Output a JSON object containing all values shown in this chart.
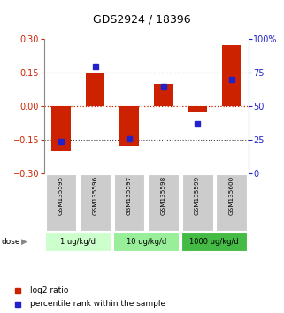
{
  "title": "GDS2924 / 18396",
  "samples": [
    "GSM135595",
    "GSM135596",
    "GSM135597",
    "GSM135598",
    "GSM135599",
    "GSM135600"
  ],
  "log2_ratio": [
    -0.2,
    0.148,
    -0.175,
    0.1,
    -0.028,
    0.275
  ],
  "percentile_rank": [
    24,
    80,
    26,
    65,
    37,
    70
  ],
  "bar_color": "#cc2200",
  "blue_color": "#2222cc",
  "ylim": [
    -0.3,
    0.3
  ],
  "y2lim": [
    0,
    100
  ],
  "yticks": [
    -0.3,
    -0.15,
    0,
    0.15,
    0.3
  ],
  "y2ticks": [
    0,
    25,
    50,
    75,
    100
  ],
  "sample_bg_color": "#cccccc",
  "dose_groups": [
    {
      "label": "1 ug/kg/d",
      "start": 0,
      "end": 2,
      "color": "#ccffcc"
    },
    {
      "label": "10 ug/kg/d",
      "start": 2,
      "end": 4,
      "color": "#99ee99"
    },
    {
      "label": "1000 ug/kg/d",
      "start": 4,
      "end": 6,
      "color": "#44bb44"
    }
  ],
  "legend_red_label": "log2 ratio",
  "legend_blue_label": "percentile rank within the sample"
}
